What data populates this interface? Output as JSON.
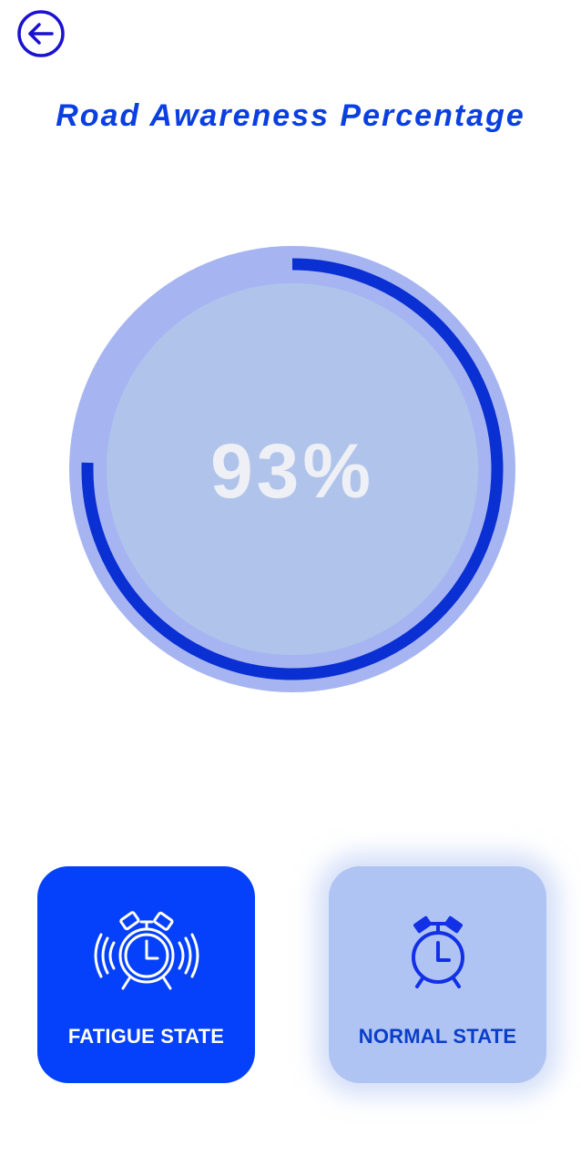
{
  "header": {
    "back_icon": "arrow-left-circle-icon",
    "title": "Road Awareness Percentage"
  },
  "gauge": {
    "value_label": "93%",
    "progress_fraction": 0.93,
    "colors": {
      "outer": "#a6b5f2",
      "inner": "#b0c4eb",
      "arc": "#0a2fd2",
      "value_text": "#eef0f6"
    }
  },
  "states": [
    {
      "label": "FATIGUE STATE",
      "icon": "alarm-clock-ringing-icon",
      "background": "#0541fa",
      "text_color": "#ffffff"
    },
    {
      "label": "NORMAL STATE",
      "icon": "alarm-clock-icon",
      "background": "#b0c4f3",
      "text_color": "#0a3ec8"
    }
  ]
}
